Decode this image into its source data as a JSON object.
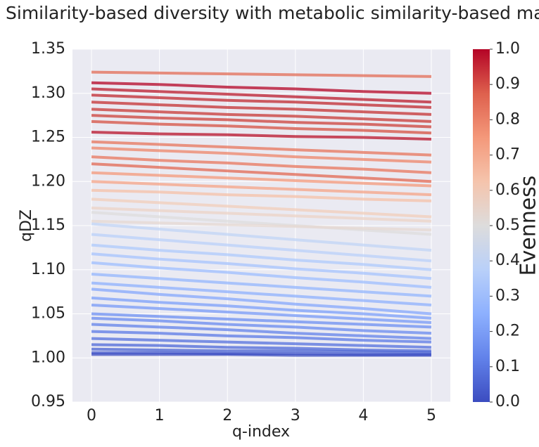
{
  "chart_data": {
    "type": "line",
    "title": "Similarity-based diversity with metabolic similarity-based matrix",
    "x_label": "q-index",
    "y_label": "qDZ",
    "x": [
      0,
      1,
      2,
      3,
      4,
      5
    ],
    "xlim": [
      -0.28,
      5.28
    ],
    "xticks": [
      0,
      1,
      2,
      3,
      4,
      5
    ],
    "ylim": [
      0.95,
      1.35
    ],
    "yticks": [
      0.95,
      {
        "value": 1.0,
        "label": "1.00"
      },
      1.05,
      {
        "value": 1.1,
        "label": "1.10"
      },
      1.15,
      {
        "value": 1.2,
        "label": "1.20"
      },
      1.25,
      {
        "value": 1.3,
        "label": "1.30"
      },
      1.35
    ],
    "grid": true,
    "series": [
      {
        "color": "#b40426",
        "values": [
          1.312,
          1.31,
          1.307,
          1.305,
          1.302,
          1.3
        ]
      },
      {
        "color": "#bb1b2c",
        "values": [
          1.305,
          1.302,
          1.299,
          1.296,
          1.293,
          1.29
        ]
      },
      {
        "color": "#c0282f",
        "values": [
          1.298,
          1.295,
          1.292,
          1.29,
          1.287,
          1.284
        ]
      },
      {
        "color": "#c43032",
        "values": [
          1.29,
          1.287,
          1.284,
          1.282,
          1.279,
          1.276
        ]
      },
      {
        "color": "#c83836",
        "values": [
          1.282,
          1.279,
          1.276,
          1.274,
          1.271,
          1.268
        ]
      },
      {
        "color": "#cc403a",
        "values": [
          1.275,
          1.272,
          1.27,
          1.267,
          1.265,
          1.262
        ]
      },
      {
        "color": "#b8122a",
        "values": [
          1.256,
          1.254,
          1.253,
          1.251,
          1.25,
          1.248
        ]
      },
      {
        "color": "#e36c55",
        "values": [
          1.324,
          1.323,
          1.322,
          1.321,
          1.32,
          1.319
        ]
      },
      {
        "color": "#d55042",
        "values": [
          1.268,
          1.265,
          1.263,
          1.26,
          1.258,
          1.255
        ]
      },
      {
        "color": "#e7745b",
        "values": [
          1.245,
          1.242,
          1.239,
          1.236,
          1.233,
          1.23
        ]
      },
      {
        "color": "#ee8468",
        "values": [
          1.238,
          1.235,
          1.232,
          1.228,
          1.225,
          1.222
        ]
      },
      {
        "color": "#e8765c",
        "values": [
          1.228,
          1.224,
          1.221,
          1.217,
          1.214,
          1.21
        ]
      },
      {
        "color": "#e16751",
        "values": [
          1.22,
          1.216,
          1.212,
          1.208,
          1.204,
          1.2
        ]
      },
      {
        "color": "#f4987a",
        "values": [
          1.21,
          1.207,
          1.204,
          1.201,
          1.198,
          1.195
        ]
      },
      {
        "color": "#f6a385",
        "values": [
          1.2,
          1.197,
          1.194,
          1.191,
          1.188,
          1.185
        ]
      },
      {
        "color": "#f5c0a7",
        "values": [
          1.19,
          1.188,
          1.185,
          1.183,
          1.18,
          1.178
        ]
      },
      {
        "color": "#f1cdba",
        "values": [
          1.18,
          1.176,
          1.172,
          1.168,
          1.164,
          1.16
        ]
      },
      {
        "color": "#ecd3c5",
        "values": [
          1.17,
          1.167,
          1.164,
          1.161,
          1.158,
          1.155
        ]
      },
      {
        "color": "#dddcdc",
        "values": [
          1.165,
          1.16,
          1.155,
          1.15,
          1.145,
          1.14
        ]
      },
      {
        "color": "#e5d8d1",
        "values": [
          1.155,
          1.153,
          1.151,
          1.149,
          1.147,
          1.145
        ]
      },
      {
        "color": "#c0d4f5",
        "values": [
          1.152,
          1.146,
          1.14,
          1.134,
          1.128,
          1.122
        ]
      },
      {
        "color": "#b9d0f9",
        "values": [
          1.14,
          1.134,
          1.128,
          1.122,
          1.116,
          1.11
        ]
      },
      {
        "color": "#aec9fc",
        "values": [
          1.128,
          1.122,
          1.117,
          1.111,
          1.106,
          1.1
        ]
      },
      {
        "color": "#a5c3fe",
        "values": [
          1.118,
          1.112,
          1.107,
          1.101,
          1.096,
          1.09
        ]
      },
      {
        "color": "#9ebeff",
        "values": [
          1.108,
          1.102,
          1.097,
          1.091,
          1.086,
          1.08
        ]
      },
      {
        "color": "#93b5fe",
        "values": [
          1.095,
          1.09,
          1.085,
          1.08,
          1.075,
          1.07
        ]
      },
      {
        "color": "#8db0fe",
        "values": [
          1.085,
          1.08,
          1.075,
          1.07,
          1.065,
          1.06
        ]
      },
      {
        "color": "#84a7fc",
        "values": [
          1.078,
          1.072,
          1.067,
          1.061,
          1.056,
          1.05
        ]
      },
      {
        "color": "#7b9ff9",
        "values": [
          1.068,
          1.063,
          1.059,
          1.054,
          1.05,
          1.045
        ]
      },
      {
        "color": "#779af7",
        "values": [
          1.06,
          1.056,
          1.052,
          1.048,
          1.044,
          1.04
        ]
      },
      {
        "color": "#6c8ff1",
        "values": [
          1.05,
          1.047,
          1.044,
          1.041,
          1.038,
          1.035
        ]
      },
      {
        "color": "#688aef",
        "values": [
          1.045,
          1.042,
          1.038,
          1.035,
          1.031,
          1.028
        ]
      },
      {
        "color": "#6282ea",
        "values": [
          1.038,
          1.035,
          1.032,
          1.028,
          1.025,
          1.022
        ]
      },
      {
        "color": "#5b7ae5",
        "values": [
          1.03,
          1.028,
          1.025,
          1.023,
          1.02,
          1.018
        ]
      },
      {
        "color": "#5470de",
        "values": [
          1.022,
          1.02,
          1.018,
          1.016,
          1.014,
          1.012
        ]
      },
      {
        "color": "#4e68d8",
        "values": [
          1.015,
          1.014,
          1.012,
          1.011,
          1.009,
          1.008
        ]
      },
      {
        "color": "#4a63d3",
        "values": [
          1.01,
          1.009,
          1.008,
          1.008,
          1.007,
          1.006
        ]
      },
      {
        "color": "#445acc",
        "values": [
          1.006,
          1.006,
          1.005,
          1.005,
          1.004,
          1.004
        ]
      },
      {
        "color": "#3b4cc0",
        "values": [
          1.004,
          1.004,
          1.004,
          1.003,
          1.003,
          1.003
        ]
      }
    ],
    "colorbar": {
      "label": "Evenness",
      "lim": [
        0,
        1
      ],
      "ticks": [
        {
          "value": 0,
          "label": "0.0"
        },
        0.1,
        0.2,
        0.3,
        0.4,
        0.5,
        0.6,
        0.7,
        0.8,
        0.9,
        {
          "value": 1,
          "label": "1.0"
        }
      ],
      "colors": [
        "#3b4cc0",
        "#6282ea",
        "#8db0fe",
        "#b9d0f9",
        "#dddcdc",
        "#f5c4ac",
        "#f4987a",
        "#de604d",
        "#b40426"
      ]
    }
  }
}
